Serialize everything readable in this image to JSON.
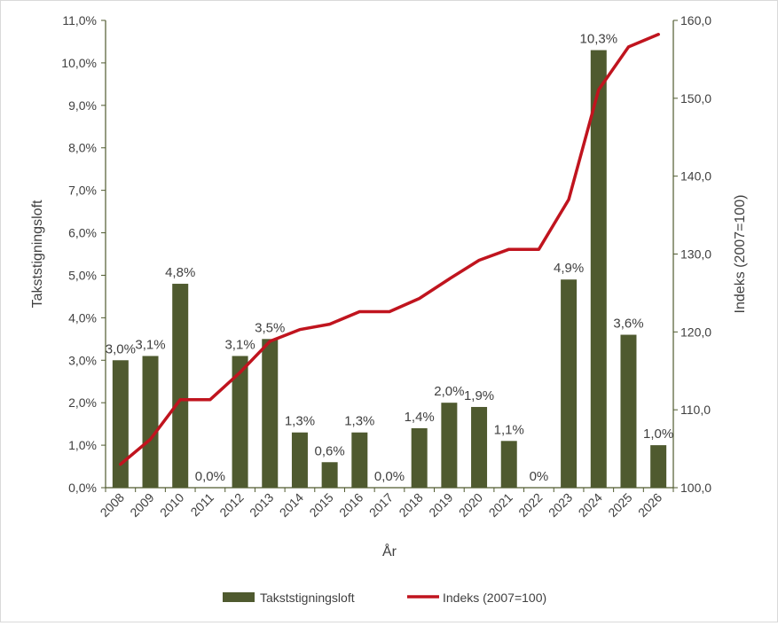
{
  "chart_data": {
    "type": "bar",
    "title": "",
    "xlabel": "År",
    "ylabel": "Takststigningsloft",
    "y2label": "Indeks (2007=100)",
    "categories": [
      "2008",
      "2009",
      "2010",
      "2011",
      "2012",
      "2013",
      "2014",
      "2015",
      "2016",
      "2017",
      "2018",
      "2019",
      "2020",
      "2021",
      "2022",
      "2023",
      "2024",
      "2025",
      "2026"
    ],
    "ylim": [
      0,
      11
    ],
    "y2lim": [
      100,
      160
    ],
    "yticks": [
      "0,0%",
      "1,0%",
      "2,0%",
      "3,0%",
      "4,0%",
      "5,0%",
      "6,0%",
      "7,0%",
      "8,0%",
      "9,0%",
      "10,0%",
      "11,0%"
    ],
    "y2ticks": [
      "100,0",
      "110,0",
      "120,0",
      "130,0",
      "140,0",
      "150,0",
      "160,0"
    ],
    "grid": false,
    "legend": "bottom",
    "series": [
      {
        "name": "Takststigningsloft",
        "type": "bar",
        "axis": "left",
        "color": "#4f5a2f",
        "values": [
          3.0,
          3.1,
          4.8,
          0.0,
          3.1,
          3.5,
          1.3,
          0.6,
          1.3,
          0.0,
          1.4,
          2.0,
          1.9,
          1.1,
          0.0,
          4.9,
          10.3,
          3.6,
          1.0
        ],
        "labels": [
          "3,0%",
          "3,1%",
          "4,8%",
          "0,0%",
          "3,1%",
          "3,5%",
          "1,3%",
          "0,6%",
          "1,3%",
          "0,0%",
          "1,4%",
          "2,0%",
          "1,9%",
          "1,1%",
          "0%",
          "4,9%",
          "10,3%",
          "3,6%",
          "1,0%"
        ]
      },
      {
        "name": "Indeks (2007=100)",
        "type": "line",
        "axis": "right",
        "color": "#c0141e",
        "values": [
          103.0,
          106.2,
          111.3,
          111.3,
          114.8,
          118.8,
          120.3,
          121.0,
          122.6,
          122.6,
          124.3,
          126.8,
          129.2,
          130.6,
          130.6,
          137.0,
          151.1,
          156.6,
          158.2
        ]
      }
    ]
  }
}
